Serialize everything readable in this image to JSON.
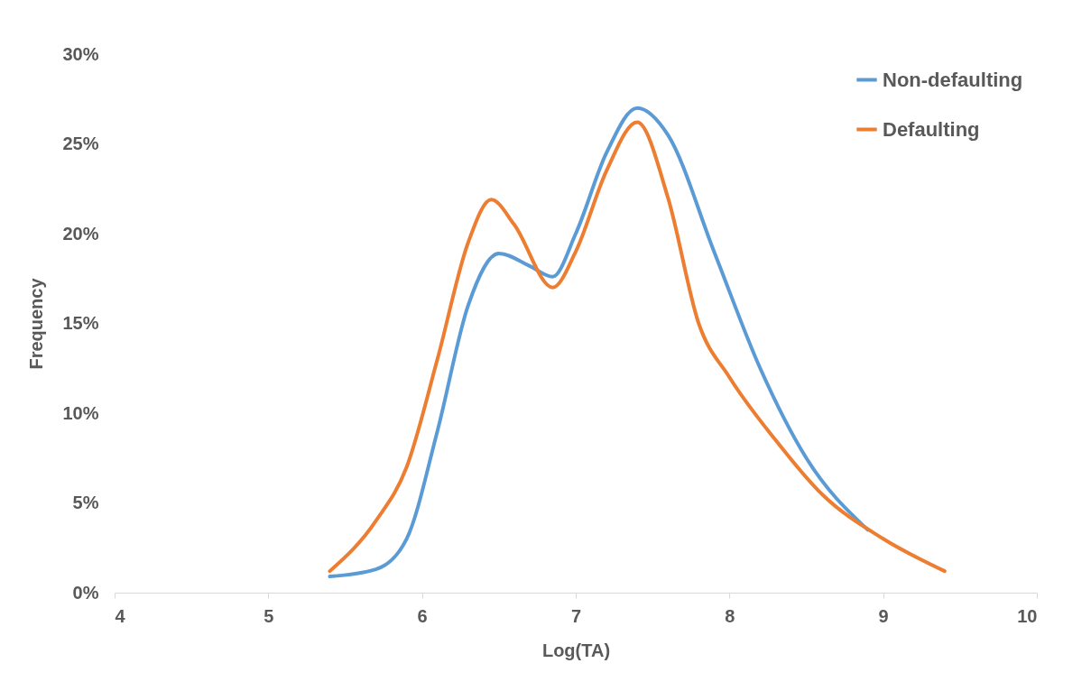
{
  "chart_data": {
    "type": "line",
    "xlabel": "Log(TA)",
    "ylabel": "Frequency",
    "xlim": [
      4,
      10
    ],
    "xticks": [
      4,
      5,
      6,
      7,
      8,
      9,
      10
    ],
    "ylim": [
      0,
      30
    ],
    "yticks": [
      {
        "value": 0,
        "label": "0%"
      },
      {
        "value": 5,
        "label": "5%"
      },
      {
        "value": 10,
        "label": "10%"
      },
      {
        "value": 15,
        "label": "15%"
      },
      {
        "value": 20,
        "label": "20%"
      },
      {
        "value": 25,
        "label": "25%"
      },
      {
        "value": 30,
        "label": "30%"
      }
    ],
    "grid": false,
    "legend": "top right",
    "marker": "none",
    "line_style": "solid",
    "series": [
      {
        "name": "Non-defaulting",
        "color": "#5b9bd5",
        "x": [
          5.4,
          5.7,
          5.9,
          6.1,
          6.3,
          6.5,
          6.7,
          6.85,
          7.0,
          7.2,
          7.4,
          7.6,
          7.9,
          8.2,
          8.5,
          8.9
        ],
        "values": [
          0.9,
          1.3,
          3,
          9,
          16,
          18.9,
          18.2,
          17.6,
          20,
          24.5,
          27,
          25.5,
          19,
          12.5,
          7.5,
          3.5
        ]
      },
      {
        "name": "Defaulting",
        "color": "#ed7d31",
        "x": [
          5.4,
          5.7,
          5.9,
          6.1,
          6.3,
          6.45,
          6.6,
          6.85,
          7.0,
          7.2,
          7.4,
          7.6,
          7.8,
          8.0,
          8.3,
          8.6,
          9.0,
          9.4
        ],
        "values": [
          1.2,
          4,
          7,
          13,
          19.5,
          21.9,
          20.5,
          17,
          19,
          23.5,
          26.2,
          22,
          15,
          12,
          8.5,
          5.5,
          3,
          1.2
        ]
      }
    ]
  }
}
